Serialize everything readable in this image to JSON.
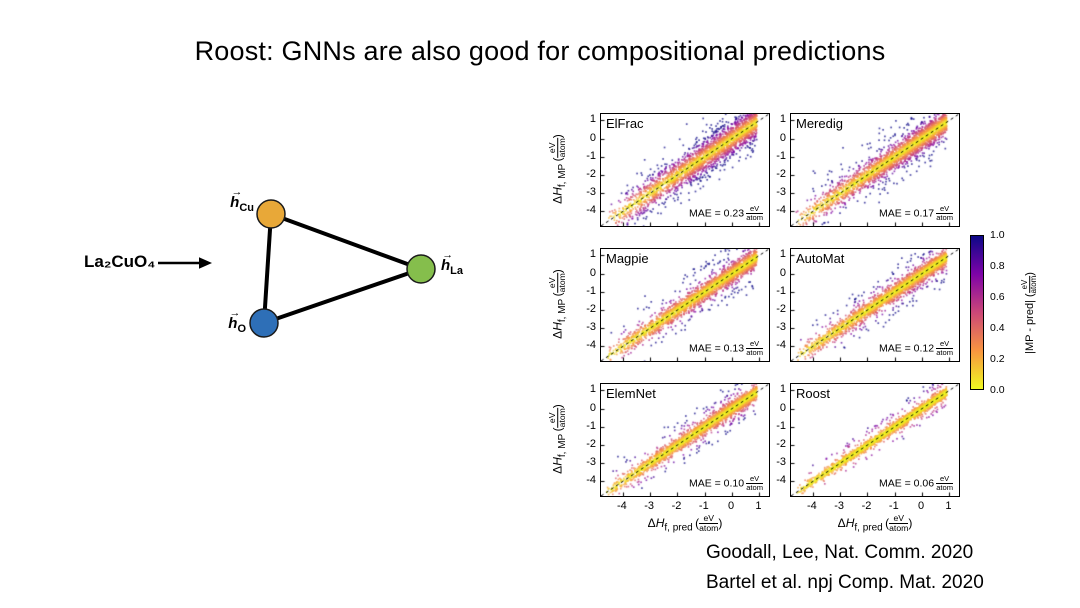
{
  "title": "Roost: GNNs are also good for compositional predictions",
  "diagram": {
    "formula": "La₂CuO₄",
    "nodes": [
      {
        "id": "Cu",
        "label_base": "h",
        "label_sub": "Cu",
        "color": "#E8A838"
      },
      {
        "id": "O",
        "label_base": "h",
        "label_sub": "O",
        "color": "#2E6FB7"
      },
      {
        "id": "La",
        "label_base": "h",
        "label_sub": "La",
        "color": "#85BE4C"
      }
    ]
  },
  "chart_data": {
    "type": "scatter",
    "description": "2-column x 3-row grid of density parity plots of predicted vs Materials Project formation enthalpy; points cluster along the dashed identity line and are colored by absolute error |MP - pred|",
    "panels": [
      {
        "title": "ElFrac",
        "mae": 0.23
      },
      {
        "title": "Meredig",
        "mae": 0.17
      },
      {
        "title": "Magpie",
        "mae": 0.13
      },
      {
        "title": "AutoMat",
        "mae": 0.12
      },
      {
        "title": "ElemNet",
        "mae": 0.1
      },
      {
        "title": "Roost",
        "mae": 0.06
      }
    ],
    "mae_prefix": "MAE = ",
    "xlabel": {
      "prefix": "Δ",
      "var": "H",
      "sub": "f, pred",
      "unit_num": "eV",
      "unit_den": "atom"
    },
    "ylabel": {
      "prefix": "Δ",
      "var": "H",
      "sub": "f, MP",
      "unit_num": "eV",
      "unit_den": "atom"
    },
    "xlim": [
      -4.8,
      1.35
    ],
    "ylim": [
      -4.8,
      1.35
    ],
    "xticks": [
      -4,
      -3,
      -2,
      -1,
      0,
      1
    ],
    "yticks": [
      1,
      0,
      -1,
      -2,
      -3,
      -4
    ],
    "identity_line": true,
    "grid": false,
    "colorbar": {
      "label": {
        "pre": "|MP - pred| (",
        "unit_num": "eV",
        "unit_den": "atom",
        "post": ")"
      },
      "ticks": [
        "1.0",
        "0.8",
        "0.6",
        "0.4",
        "0.2",
        "0.0"
      ],
      "colormap": "plasma_r",
      "stops": [
        "#0d0887",
        "#7e03a8",
        "#cc4778",
        "#f89540",
        "#f0f921"
      ]
    }
  },
  "citations": [
    "Goodall, Lee, Nat. Comm. 2020",
    "Bartel et al. npj Comp. Mat. 2020"
  ]
}
